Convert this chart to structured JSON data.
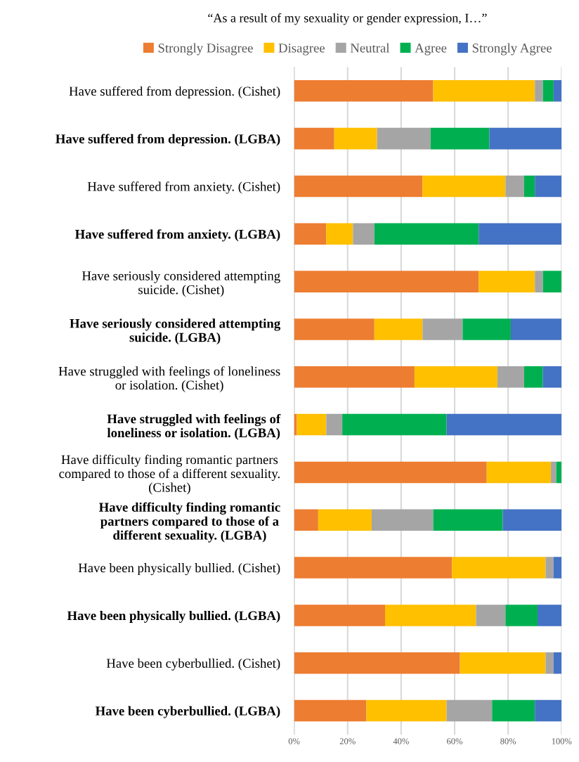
{
  "chart_data": {
    "type": "bar",
    "orientation": "horizontal",
    "stacked": true,
    "title": "“As a result of my sexuality or gender expression, I…”",
    "categories": [
      "Have suffered from depression. (Cishet)",
      "Have suffered from depression. (LGBA)",
      "Have suffered from anxiety. (Cishet)",
      "Have suffered from anxiety. (LGBA)",
      "Have seriously considered attempting\nsuicide. (Cishet)",
      "Have seriously considered attempting\nsuicide. (LGBA)",
      "Have struggled with feelings of loneliness\nor isolation. (Cishet)",
      "Have struggled with feelings of\nloneliness or isolation. (LGBA)",
      "Have difficulty finding romantic partners\ncompared to those of a different sexuality.\n(Cishet)",
      "Have difficulty finding romantic\npartners compared to those of a\ndifferent sexuality. (LGBA)",
      "Have been physically bullied. (Cishet)",
      "Have been physically bullied. (LGBA)",
      "Have been cyberbullied. (Cishet)",
      "Have been cyberbullied. (LGBA)"
    ],
    "series": [
      {
        "name": "Strongly Disagree",
        "color": "#ed7d31",
        "values": [
          52,
          15,
          48,
          12,
          69,
          30,
          45,
          1,
          72,
          9,
          59,
          34,
          62,
          27
        ]
      },
      {
        "name": "Disagree",
        "color": "#ffc000",
        "values": [
          38,
          16,
          31,
          10,
          21,
          18,
          31,
          11,
          24,
          20,
          35,
          34,
          32,
          30
        ]
      },
      {
        "name": "Neutral",
        "color": "#a5a5a5",
        "values": [
          3,
          20,
          7,
          8,
          3,
          15,
          10,
          6,
          2,
          23,
          3,
          11,
          3,
          17
        ]
      },
      {
        "name": "Agree",
        "color": "#00b050",
        "values": [
          4,
          22,
          4,
          39,
          7,
          18,
          7,
          39,
          2,
          26,
          0,
          12,
          0,
          16
        ]
      },
      {
        "name": "Strongly Agree",
        "color": "#4472c4",
        "values": [
          3,
          27,
          10,
          31,
          0,
          19,
          7,
          43,
          0,
          22,
          3,
          9,
          3,
          10
        ]
      }
    ],
    "xlim": [
      0,
      100
    ],
    "xticks": [
      {
        "value": 0,
        "label": "0%"
      },
      {
        "value": 20,
        "label": "20%"
      },
      {
        "value": 40,
        "label": "40%"
      },
      {
        "value": 60,
        "label": "60%"
      },
      {
        "value": 80,
        "label": "80%"
      },
      {
        "value": 100,
        "label": "100%"
      }
    ],
    "grid": "x",
    "legend": "top"
  }
}
